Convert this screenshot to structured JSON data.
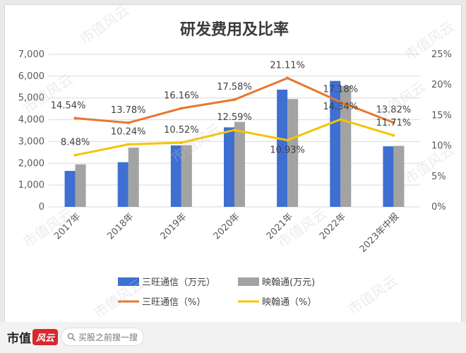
{
  "chart_data": {
    "type": "bar",
    "title": "研发费用及比率",
    "categories": [
      "2017年",
      "2018年",
      "2019年",
      "2020年",
      "2021年",
      "2022年",
      "2023年中报"
    ],
    "bar_series": [
      {
        "name": "三旺通信（万元）",
        "values": [
          1650,
          2050,
          2820,
          3650,
          5380,
          5780,
          2780
        ]
      },
      {
        "name": "映翰通(万元)",
        "values": [
          1950,
          2720,
          2830,
          3900,
          4950,
          5550,
          2800
        ]
      }
    ],
    "line_series": [
      {
        "name": "三旺通信（%）",
        "values": [
          14.54,
          13.78,
          16.16,
          17.58,
          21.11,
          17.18,
          13.82
        ],
        "labels": [
          "14.54%",
          "13.78%",
          "16.16%",
          "17.58%",
          "21.11%",
          "17.18%",
          "13.82%"
        ]
      },
      {
        "name": "映翰通（%）",
        "values": [
          8.48,
          10.24,
          10.52,
          12.59,
          10.93,
          14.34,
          11.71
        ],
        "labels": [
          "8.48%",
          "10.24%",
          "10.52%",
          "12.59%",
          "10.93%",
          "14.34%",
          "11.71%"
        ]
      }
    ],
    "y_left": {
      "ticks": [
        "0",
        "1,000",
        "2,000",
        "3,000",
        "4,000",
        "5,000",
        "6,000",
        "7,000"
      ],
      "range": [
        0,
        7000
      ]
    },
    "y_right": {
      "ticks": [
        "0%",
        "5%",
        "10%",
        "15%",
        "20%",
        "25%"
      ],
      "range": [
        0,
        25
      ]
    },
    "grid": true,
    "legend_position": "bottom",
    "colors": {
      "bar1": "#3f6fd1",
      "bar2": "#a3a3a3",
      "line1": "#e8762d",
      "line2": "#f5c400",
      "grid": "#d9d9d9",
      "axis_text": "#595959"
    }
  },
  "watermark_text": "市值风云",
  "footer": {
    "brand": "市值",
    "brand_mark": "风云",
    "search_placeholder": "买股之前搜一搜",
    "search_icon": "search-icon"
  }
}
